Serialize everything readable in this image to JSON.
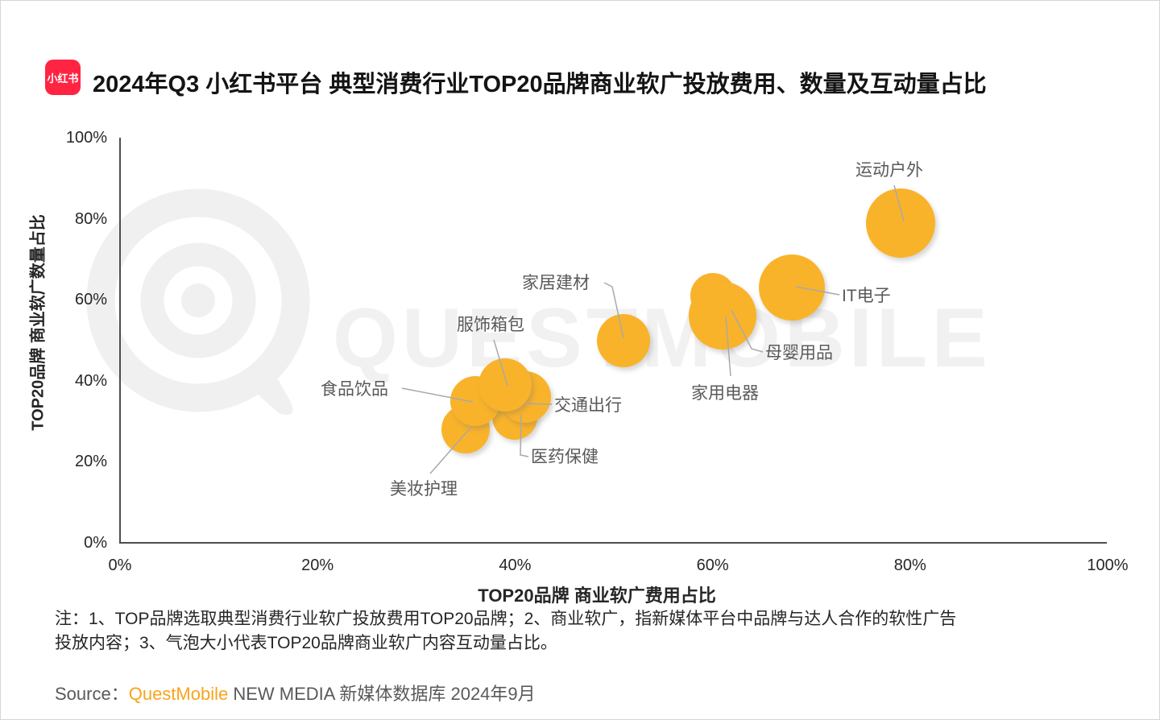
{
  "header": {
    "logo_text": "小红书",
    "title": "2024年Q3 小红书平台 典型消费行业TOP20品牌商业软广投放费用、数量及互动量占比"
  },
  "watermark_text": "QUESTMOBILE",
  "chart_data": {
    "type": "scatter",
    "title": "2024年Q3 小红书平台 典型消费行业TOP20品牌商业软广投放费用、数量及互动量占比",
    "xlabel": "TOP20品牌 商业软广费用占比",
    "ylabel": "TOP20品牌 商业软广数量占比",
    "xlim": [
      0,
      100
    ],
    "ylim": [
      0,
      100
    ],
    "x_ticks": [
      "0%",
      "20%",
      "40%",
      "60%",
      "80%",
      "100%"
    ],
    "y_ticks": [
      "0%",
      "20%",
      "40%",
      "60%",
      "80%",
      "100%"
    ],
    "grid": false,
    "legend": "none",
    "bubble_size_meaning": "气泡大小代表TOP20品牌商业软广内容互动量占比",
    "series": [
      {
        "name": "美妆护理",
        "fee_share_pct": 35,
        "count_share_pct": 28,
        "radius_px": 30
      },
      {
        "name": "食品饮品",
        "fee_share_pct": 36,
        "count_share_pct": 35,
        "radius_px": 31
      },
      {
        "name": "服饰箱包",
        "fee_share_pct": 39,
        "count_share_pct": 39,
        "radius_px": 33
      },
      {
        "name": "交通出行",
        "fee_share_pct": 41,
        "count_share_pct": 36,
        "radius_px": 32
      },
      {
        "name": "医药保健",
        "fee_share_pct": 40,
        "count_share_pct": 31,
        "radius_px": 28
      },
      {
        "name": "家居建材",
        "fee_share_pct": 51,
        "count_share_pct": 50,
        "radius_px": 33
      },
      {
        "name": "家用电器",
        "fee_share_pct": 61,
        "count_share_pct": 56,
        "radius_px": 42
      },
      {
        "name": "母婴用品",
        "fee_share_pct": 60,
        "count_share_pct": 61,
        "radius_px": 28
      },
      {
        "name": "IT电子",
        "fee_share_pct": 68,
        "count_share_pct": 63,
        "radius_px": 41
      },
      {
        "name": "运动户外",
        "fee_share_pct": 79,
        "count_share_pct": 79,
        "radius_px": 43
      }
    ],
    "colors": {
      "bubble": "#F9B32A",
      "bubble_label": "#595959",
      "callout_line": "#A9A9A9",
      "axis": "#4D4D4D",
      "watermark": "#F1F1F1"
    }
  },
  "footnote": {
    "lines": [
      "注：1、TOP品牌选取典型消费行业软广投放费用TOP20品牌；2、商业软广，指新媒体平台中品牌与达人合作的软性广告",
      "投放内容；3、气泡大小代表TOP20品牌商业软广内容互动量占比。"
    ]
  },
  "source": {
    "prefix": "Source：",
    "brand": "QuestMobile",
    "suffix": " NEW MEDIA 新媒体数据库 2024年9月"
  }
}
